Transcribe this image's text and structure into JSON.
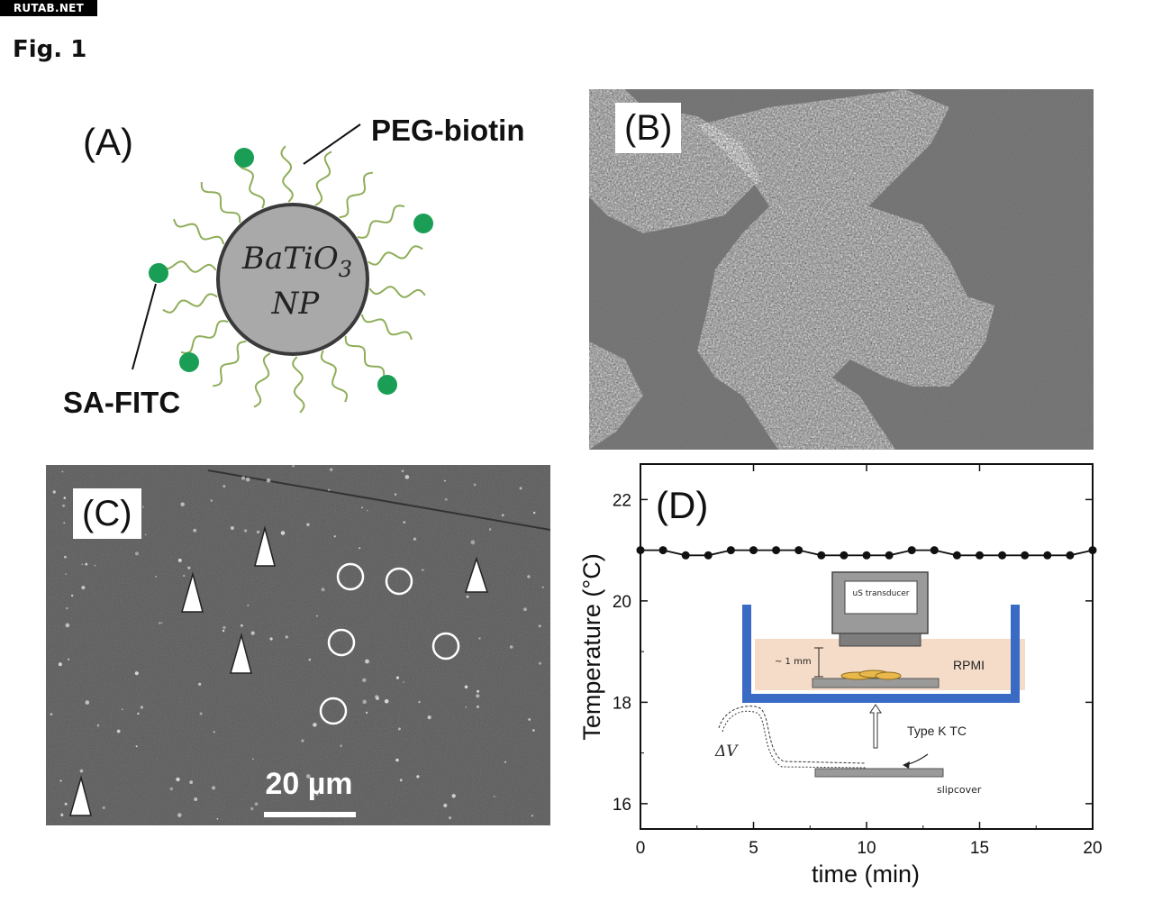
{
  "watermark": "RUTAB.NET",
  "figure_title": "Fig. 1",
  "panel_a": {
    "label": "(A)",
    "core_line1": "BaTiO",
    "core_sub": "3",
    "core_line2": "NP",
    "peg_label": "PEG-biotin",
    "sa_label": "SA-FITC",
    "colors": {
      "core": "#a9a9a9",
      "ligand": "#8fae5a",
      "fitc": "#1a9e55"
    }
  },
  "panel_b": {
    "label": "(B)"
  },
  "panel_c": {
    "label": "(C)",
    "scale_bar": "20 µm"
  },
  "panel_d": {
    "label": "(D)",
    "inset": {
      "transducer": "uS transducer",
      "medium": "RPMI",
      "gap": "~ 1 mm",
      "thermocouple": "Type K TC",
      "slipcover": "slipcover",
      "delta_v": "ΔV"
    }
  },
  "chart_data": {
    "type": "line",
    "title": "",
    "xlabel": "time (min)",
    "ylabel": "Temperature (°C)",
    "xlim": [
      0,
      20
    ],
    "ylim": [
      15.5,
      22.7
    ],
    "xticks": [
      0,
      5,
      10,
      15,
      20
    ],
    "yticks": [
      16,
      18,
      20,
      22
    ],
    "grid": false,
    "series": [
      {
        "x": [
          0,
          1,
          2,
          3,
          4,
          5,
          6,
          7,
          8,
          9,
          10,
          11,
          12,
          13,
          14,
          15,
          16,
          17,
          18,
          19,
          20
        ],
        "y": [
          21.0,
          21.0,
          20.9,
          20.9,
          21.0,
          21.0,
          21.0,
          21.0,
          20.9,
          20.9,
          20.9,
          20.9,
          21.0,
          21.0,
          20.9,
          20.9,
          20.9,
          20.9,
          20.9,
          20.9,
          21.0
        ]
      }
    ]
  }
}
